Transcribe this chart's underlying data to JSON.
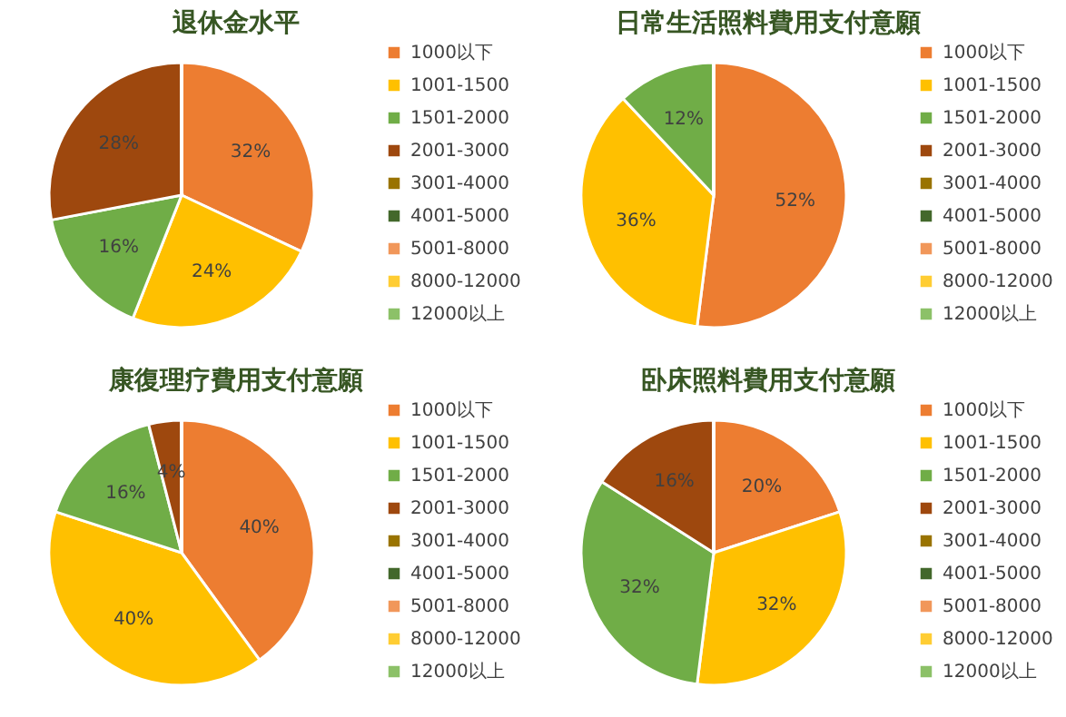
{
  "chart_data": [
    {
      "type": "pie",
      "title": "退休金水平",
      "legend": "right",
      "categories": [
        "1000以下",
        "1001-1500",
        "1501-2000",
        "2001-3000",
        "3001-4000",
        "4001-5000",
        "5001-8000",
        "8000-12000",
        "12000以上"
      ],
      "values": [
        32,
        24,
        16,
        28,
        0,
        0,
        0,
        0,
        0
      ],
      "value_labels": [
        "32%",
        "24%",
        "16%",
        "28%",
        null,
        null,
        null,
        null,
        null
      ],
      "colors": [
        "#ed7d31",
        "#ffc000",
        "#70ad47",
        "#9e480e",
        "#997300",
        "#43682b",
        "#f1975a",
        "#ffcd33",
        "#8cc168"
      ]
    },
    {
      "type": "pie",
      "title": "日常生活照料費用支付意願",
      "legend": "right",
      "categories": [
        "1000以下",
        "1001-1500",
        "1501-2000",
        "2001-3000",
        "3001-4000",
        "4001-5000",
        "5001-8000",
        "8000-12000",
        "12000以上"
      ],
      "values": [
        52,
        36,
        12,
        0,
        0,
        0,
        0,
        0,
        0
      ],
      "value_labels": [
        "52%",
        "36%",
        "12%",
        null,
        null,
        null,
        null,
        null,
        null
      ],
      "colors": [
        "#ed7d31",
        "#ffc000",
        "#70ad47",
        "#9e480e",
        "#997300",
        "#43682b",
        "#f1975a",
        "#ffcd33",
        "#8cc168"
      ]
    },
    {
      "type": "pie",
      "title": "康復理疗費用支付意願",
      "legend": "right",
      "categories": [
        "1000以下",
        "1001-1500",
        "1501-2000",
        "2001-3000",
        "3001-4000",
        "4001-5000",
        "5001-8000",
        "8000-12000",
        "12000以上"
      ],
      "values": [
        40,
        40,
        16,
        4,
        0,
        0,
        0,
        0,
        0
      ],
      "value_labels": [
        "40%",
        "40%",
        "16%",
        "4%",
        null,
        null,
        null,
        null,
        null
      ],
      "colors": [
        "#ed7d31",
        "#ffc000",
        "#70ad47",
        "#9e480e",
        "#997300",
        "#43682b",
        "#f1975a",
        "#ffcd33",
        "#8cc168"
      ]
    },
    {
      "type": "pie",
      "title": "卧床照料費用支付意願",
      "legend": "right",
      "categories": [
        "1000以下",
        "1001-1500",
        "1501-2000",
        "2001-3000",
        "3001-4000",
        "4001-5000",
        "5001-8000",
        "8000-12000",
        "12000以上"
      ],
      "values": [
        20,
        32,
        32,
        16,
        0,
        0,
        0,
        0,
        0
      ],
      "value_labels": [
        "20%",
        "32%",
        "32%",
        "16%",
        null,
        null,
        null,
        null,
        null
      ],
      "colors": [
        "#ed7d31",
        "#ffc000",
        "#70ad47",
        "#9e480e",
        "#997300",
        "#43682b",
        "#f1975a",
        "#ffcd33",
        "#8cc168"
      ]
    }
  ]
}
